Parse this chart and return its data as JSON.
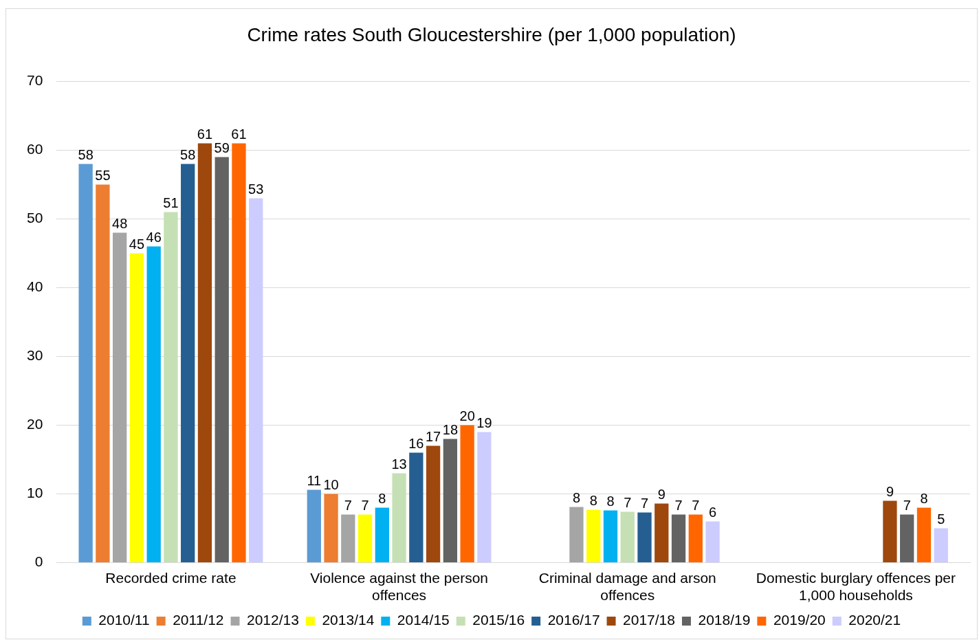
{
  "chart_data": {
    "type": "bar",
    "title": "Crime rates South Gloucestershire (per 1,000 population)",
    "categories": [
      "Recorded crime rate",
      "Violence against the person offences",
      "Criminal damage and arson offences",
      "Domestic burglary offences per 1,000 households"
    ],
    "series": [
      {
        "name": "2010/11",
        "color": "#5b9bd5",
        "values": [
          58,
          10.6,
          null,
          null
        ],
        "value_labels": [
          "58",
          "11",
          null,
          null
        ]
      },
      {
        "name": "2011/12",
        "color": "#ed7d31",
        "values": [
          55,
          10,
          null,
          null
        ],
        "value_labels": [
          "55",
          "10",
          null,
          null
        ]
      },
      {
        "name": "2012/13",
        "color": "#a5a5a5",
        "values": [
          48,
          7,
          8.1,
          null
        ],
        "value_labels": [
          "48",
          "7",
          "8",
          null
        ]
      },
      {
        "name": "2013/14",
        "color": "#ffff00",
        "values": [
          45,
          7,
          7.7,
          null
        ],
        "value_labels": [
          "45",
          "7",
          "8",
          null
        ]
      },
      {
        "name": "2014/15",
        "color": "#00b0f0",
        "values": [
          46,
          8,
          7.6,
          null
        ],
        "value_labels": [
          "46",
          "8",
          "8",
          null
        ]
      },
      {
        "name": "2015/16",
        "color": "#c5e0b4",
        "values": [
          51,
          13,
          7.4,
          null
        ],
        "value_labels": [
          "51",
          "13",
          "7",
          null
        ]
      },
      {
        "name": "2016/17",
        "color": "#255e91",
        "values": [
          58,
          16,
          7.3,
          null
        ],
        "value_labels": [
          "58",
          "16",
          "7",
          null
        ]
      },
      {
        "name": "2017/18",
        "color": "#9e480e",
        "values": [
          61,
          17,
          8.6,
          9
        ],
        "value_labels": [
          "61",
          "17",
          "9",
          "9"
        ]
      },
      {
        "name": "2018/19",
        "color": "#636363",
        "values": [
          59,
          18,
          7,
          7
        ],
        "value_labels": [
          "59",
          "18",
          "7",
          "7"
        ]
      },
      {
        "name": "2019/20",
        "color": "#ff6600",
        "values": [
          61,
          20,
          7,
          8
        ],
        "value_labels": [
          "61",
          "20",
          "7",
          "8"
        ]
      },
      {
        "name": "2020/21",
        "color": "#ccccff",
        "values": [
          53,
          19,
          6,
          5
        ],
        "value_labels": [
          "53",
          "19",
          "6",
          "5"
        ]
      }
    ],
    "ylim": [
      0,
      70
    ],
    "yticks": [
      0,
      10,
      20,
      30,
      40,
      50,
      60,
      70
    ],
    "grid": "y",
    "legend": "bottom"
  }
}
